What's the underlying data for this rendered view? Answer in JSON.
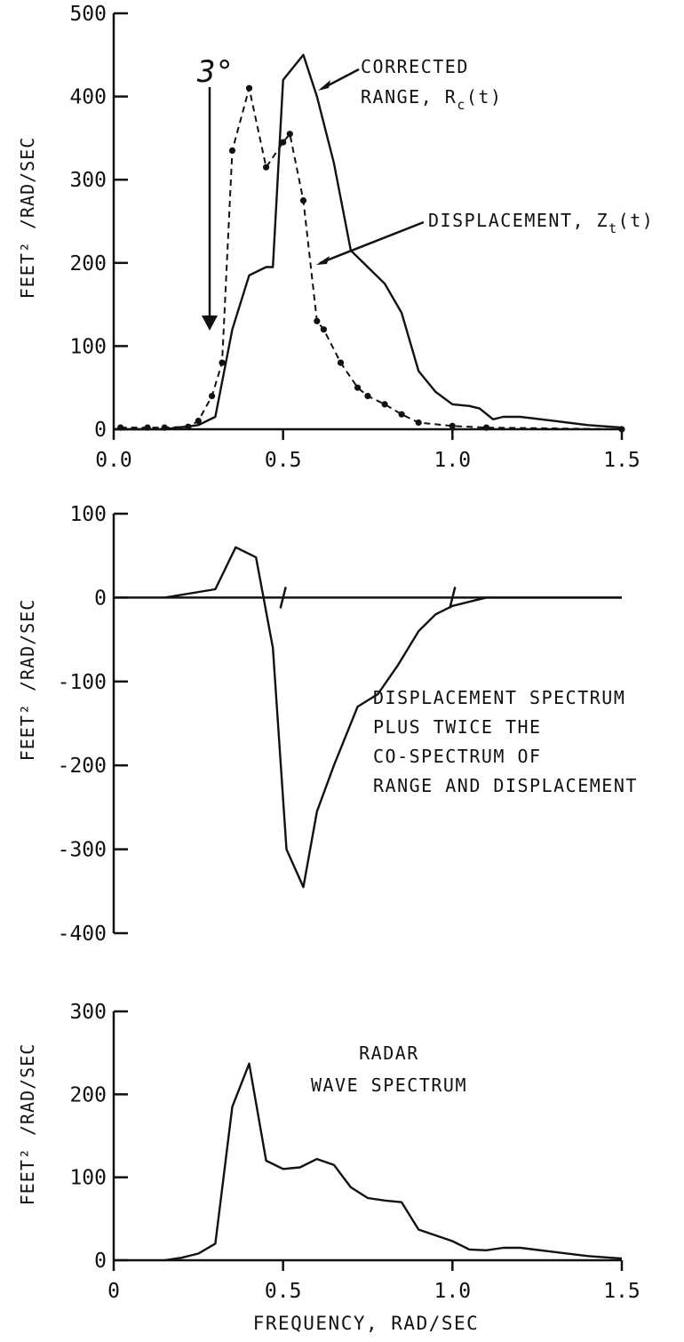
{
  "chart_data": [
    {
      "type": "line",
      "ylabel": "FEET² /RAD/SEC",
      "xlabel": "",
      "xlim": [
        0,
        1.5
      ],
      "ylim": [
        0,
        500
      ],
      "xticks": [
        "0.0",
        "0.5",
        "1.0",
        "1.5"
      ],
      "yticks": [
        "0",
        "100",
        "200",
        "300",
        "400",
        "500"
      ],
      "marker_text": "3°",
      "marker_x": 0.28,
      "series": [
        {
          "name": "CORRECTED RANGE, Rc(t)",
          "label_lines": [
            "CORRECTED",
            "RANGE, R"
          ],
          "label_sub": "c",
          "label_tail": "(t)",
          "style": "solid",
          "x": [
            0.0,
            0.15,
            0.25,
            0.3,
            0.35,
            0.4,
            0.45,
            0.47,
            0.5,
            0.56,
            0.6,
            0.65,
            0.7,
            0.75,
            0.8,
            0.85,
            0.9,
            0.95,
            1.0,
            1.05,
            1.08,
            1.12,
            1.15,
            1.2,
            1.3,
            1.4,
            1.5
          ],
          "y": [
            0,
            0,
            5,
            15,
            120,
            185,
            195,
            195,
            420,
            450,
            400,
            320,
            215,
            195,
            175,
            140,
            70,
            45,
            30,
            28,
            25,
            12,
            15,
            15,
            10,
            5,
            2
          ]
        },
        {
          "name": "DISPLACEMENT, Zt(t)",
          "label_lines": [
            "DISPLACEMENT, Z"
          ],
          "label_sub": "t",
          "label_tail": "(t)",
          "style": "dash-dot",
          "x": [
            0.02,
            0.1,
            0.15,
            0.22,
            0.25,
            0.29,
            0.32,
            0.35,
            0.4,
            0.45,
            0.5,
            0.52,
            0.56,
            0.6,
            0.62,
            0.67,
            0.72,
            0.75,
            0.8,
            0.85,
            0.9,
            1.0,
            1.1,
            1.5
          ],
          "y": [
            2,
            2,
            2,
            3,
            10,
            40,
            80,
            335,
            410,
            315,
            345,
            355,
            275,
            130,
            120,
            80,
            50,
            40,
            30,
            18,
            8,
            4,
            2,
            0
          ]
        }
      ]
    },
    {
      "type": "line",
      "ylabel": "FEET² /RAD/SEC",
      "xlabel": "",
      "xlim": [
        0,
        1.5
      ],
      "ylim": [
        -400,
        100
      ],
      "yticks": [
        "100",
        "0",
        "-100",
        "-200",
        "-300",
        "-400"
      ],
      "annotation": [
        "DISPLACEMENT SPECTRUM",
        "PLUS TWICE THE",
        "CO-SPECTRUM OF",
        "RANGE AND DISPLACEMENT"
      ],
      "series": [
        {
          "name": "DISPLACEMENT SPECTRUM PLUS TWICE THE CO-SPECTRUM OF RANGE AND DISPLACEMENT",
          "x": [
            0.15,
            0.3,
            0.36,
            0.42,
            0.47,
            0.51,
            0.56,
            0.6,
            0.65,
            0.72,
            0.78,
            0.84,
            0.9,
            0.95,
            1.0,
            1.05,
            1.1,
            1.5
          ],
          "y": [
            0,
            10,
            60,
            48,
            -60,
            -300,
            -345,
            -255,
            -200,
            -130,
            -115,
            -80,
            -40,
            -20,
            -10,
            -5,
            0,
            0
          ]
        }
      ]
    },
    {
      "type": "line",
      "ylabel": "FEET² /RAD/SEC",
      "xlabel": "FREQUENCY, RAD/SEC",
      "xlim": [
        0,
        1.5
      ],
      "ylim": [
        0,
        300
      ],
      "xticks": [
        "0",
        "0.5",
        "1.0",
        "1.5"
      ],
      "yticks": [
        "0",
        "100",
        "200",
        "300"
      ],
      "annotation": [
        "RADAR",
        "WAVE SPECTRUM"
      ],
      "series": [
        {
          "name": "RADAR WAVE SPECTRUM",
          "x": [
            0.15,
            0.2,
            0.25,
            0.3,
            0.35,
            0.4,
            0.45,
            0.5,
            0.55,
            0.6,
            0.65,
            0.7,
            0.75,
            0.8,
            0.85,
            0.9,
            0.95,
            1.0,
            1.05,
            1.1,
            1.15,
            1.2,
            1.3,
            1.4,
            1.5
          ],
          "y": [
            0,
            3,
            8,
            20,
            185,
            237,
            120,
            110,
            112,
            122,
            115,
            88,
            75,
            72,
            70,
            37,
            30,
            23,
            13,
            12,
            15,
            15,
            10,
            5,
            2
          ]
        }
      ]
    }
  ]
}
